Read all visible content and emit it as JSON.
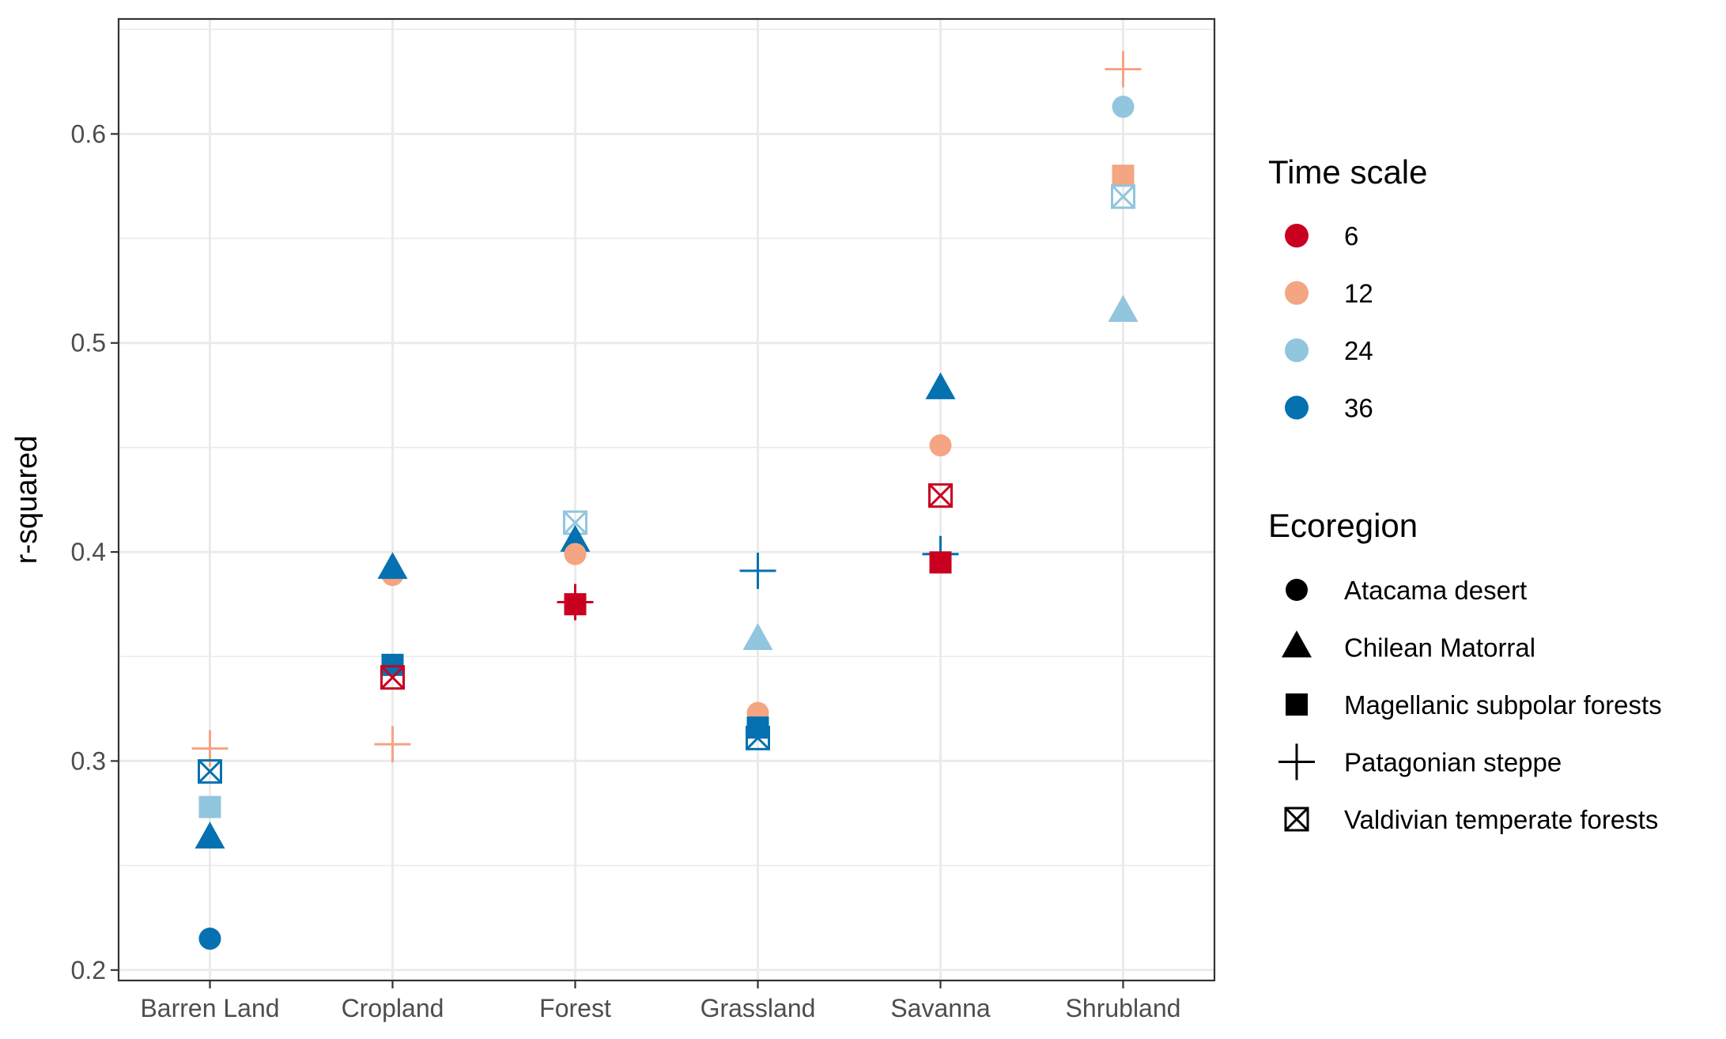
{
  "chart_data": {
    "type": "scatter",
    "xlabel": "",
    "ylabel": "r-squared",
    "categories": [
      "Barren Land",
      "Cropland",
      "Forest",
      "Grassland",
      "Savanna",
      "Shrubland"
    ],
    "ylim": [
      0.195,
      0.655
    ],
    "yticks": [
      0.2,
      0.3,
      0.4,
      0.5,
      0.6
    ],
    "ytick_labels": [
      "0.2",
      "0.3",
      "0.4",
      "0.5",
      "0.6"
    ],
    "grid": true,
    "legend_position": "right",
    "legends": {
      "time_scale": {
        "title": "Time scale",
        "entries": [
          {
            "label": "6",
            "color": "#CA0020"
          },
          {
            "label": "12",
            "color": "#F4A582"
          },
          {
            "label": "24",
            "color": "#92C5DE"
          },
          {
            "label": "36",
            "color": "#0571B0"
          }
        ]
      },
      "ecoregion": {
        "title": "Ecoregion",
        "entries": [
          {
            "label": "Atacama desert",
            "shape": "circle"
          },
          {
            "label": "Chilean Matorral",
            "shape": "triangle"
          },
          {
            "label": "Magellanic subpolar forests",
            "shape": "square"
          },
          {
            "label": "Patagonian steppe",
            "shape": "plus"
          },
          {
            "label": "Valdivian temperate forests",
            "shape": "boxcross"
          }
        ]
      }
    },
    "points": [
      {
        "category": "Barren Land",
        "ecoregion": "Patagonian steppe",
        "time_scale": "12",
        "y": 0.306
      },
      {
        "category": "Barren Land",
        "ecoregion": "Valdivian temperate forests",
        "time_scale": "36",
        "y": 0.295
      },
      {
        "category": "Barren Land",
        "ecoregion": "Magellanic subpolar forests",
        "time_scale": "24",
        "y": 0.278
      },
      {
        "category": "Barren Land",
        "ecoregion": "Chilean Matorral",
        "time_scale": "36",
        "y": 0.263
      },
      {
        "category": "Barren Land",
        "ecoregion": "Atacama desert",
        "time_scale": "36",
        "y": 0.215
      },
      {
        "category": "Cropland",
        "ecoregion": "Atacama desert",
        "time_scale": "12",
        "y": 0.389
      },
      {
        "category": "Cropland",
        "ecoregion": "Chilean Matorral",
        "time_scale": "36",
        "y": 0.392
      },
      {
        "category": "Cropland",
        "ecoregion": "Magellanic subpolar forests",
        "time_scale": "36",
        "y": 0.346
      },
      {
        "category": "Cropland",
        "ecoregion": "Valdivian temperate forests",
        "time_scale": "6",
        "y": 0.34
      },
      {
        "category": "Cropland",
        "ecoregion": "Patagonian steppe",
        "time_scale": "12",
        "y": 0.308
      },
      {
        "category": "Forest",
        "ecoregion": "Valdivian temperate forests",
        "time_scale": "24",
        "y": 0.414
      },
      {
        "category": "Forest",
        "ecoregion": "Chilean Matorral",
        "time_scale": "36",
        "y": 0.405
      },
      {
        "category": "Forest",
        "ecoregion": "Atacama desert",
        "time_scale": "12",
        "y": 0.399
      },
      {
        "category": "Forest",
        "ecoregion": "Patagonian steppe",
        "time_scale": "6",
        "y": 0.376
      },
      {
        "category": "Forest",
        "ecoregion": "Magellanic subpolar forests",
        "time_scale": "6",
        "y": 0.375
      },
      {
        "category": "Grassland",
        "ecoregion": "Patagonian steppe",
        "time_scale": "36",
        "y": 0.391
      },
      {
        "category": "Grassland",
        "ecoregion": "Chilean Matorral",
        "time_scale": "24",
        "y": 0.358
      },
      {
        "category": "Grassland",
        "ecoregion": "Atacama desert",
        "time_scale": "12",
        "y": 0.323
      },
      {
        "category": "Grassland",
        "ecoregion": "Magellanic subpolar forests",
        "time_scale": "36",
        "y": 0.316
      },
      {
        "category": "Grassland",
        "ecoregion": "Valdivian temperate forests",
        "time_scale": "36",
        "y": 0.311
      },
      {
        "category": "Savanna",
        "ecoregion": "Chilean Matorral",
        "time_scale": "36",
        "y": 0.478
      },
      {
        "category": "Savanna",
        "ecoregion": "Atacama desert",
        "time_scale": "12",
        "y": 0.451
      },
      {
        "category": "Savanna",
        "ecoregion": "Valdivian temperate forests",
        "time_scale": "6",
        "y": 0.427
      },
      {
        "category": "Savanna",
        "ecoregion": "Patagonian steppe",
        "time_scale": "36",
        "y": 0.399
      },
      {
        "category": "Savanna",
        "ecoregion": "Magellanic subpolar forests",
        "time_scale": "6",
        "y": 0.395
      },
      {
        "category": "Shrubland",
        "ecoregion": "Patagonian steppe",
        "time_scale": "12",
        "y": 0.631
      },
      {
        "category": "Shrubland",
        "ecoregion": "Atacama desert",
        "time_scale": "24",
        "y": 0.613
      },
      {
        "category": "Shrubland",
        "ecoregion": "Magellanic subpolar forests",
        "time_scale": "12",
        "y": 0.58
      },
      {
        "category": "Shrubland",
        "ecoregion": "Valdivian temperate forests",
        "time_scale": "24",
        "y": 0.57
      },
      {
        "category": "Shrubland",
        "ecoregion": "Chilean Matorral",
        "time_scale": "24",
        "y": 0.515
      }
    ]
  }
}
